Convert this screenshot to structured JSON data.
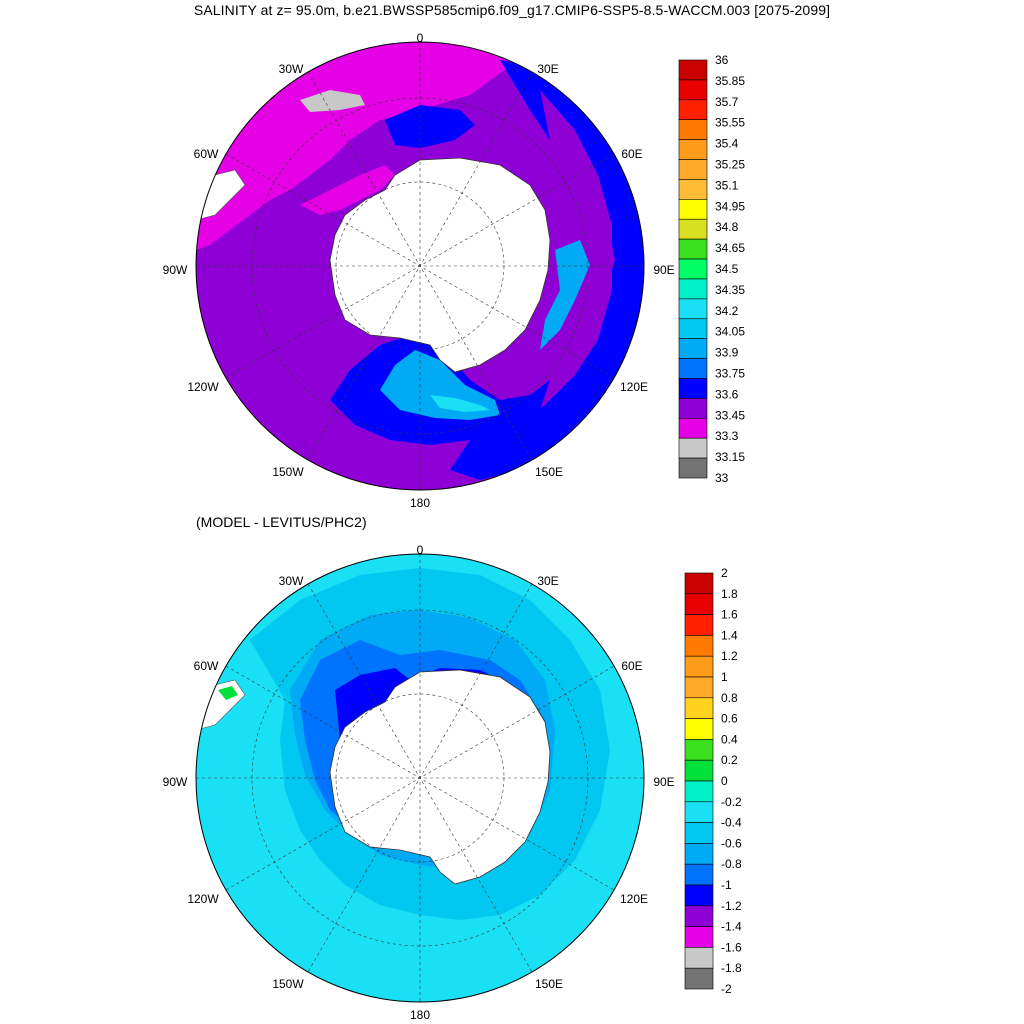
{
  "title": "SALINITY at z=  95.0m, b.e21.BWSSP585cmip6.f09_g17.CMIP6-SSP5-8.5-WACCM.003 [2075-2099]",
  "subtitle": "(MODEL - LEVITUS/PHC2)",
  "longitude_labels": {
    "top": "0",
    "ne": "30E",
    "e60": "60E",
    "e90": "90E",
    "e120": "120E",
    "se": "150E",
    "bottom": "180",
    "sw": "150W",
    "w120": "120W",
    "w90": "90W",
    "w60": "60W",
    "nw": "30W"
  },
  "colors": {
    "land": "#ffffff",
    "ocean_top": "#8e00d6",
    "ocean_bottom": "#19e0f5"
  },
  "colorbar_top": {
    "labels": [
      "36",
      "35.85",
      "35.7",
      "35.55",
      "35.4",
      "35.25",
      "35.1",
      "34.95",
      "34.8",
      "34.65",
      "34.5",
      "34.35",
      "34.2",
      "34.05",
      "33.9",
      "33.75",
      "33.6",
      "33.45",
      "33.3",
      "33.15",
      "33"
    ],
    "colors": [
      "#c80000",
      "#e80000",
      "#ff2000",
      "#ff7a00",
      "#ff9b1a",
      "#ffa928",
      "#ffbb33",
      "#ffff00",
      "#d9e020",
      "#3ae01e",
      "#00ff66",
      "#00f0c8",
      "#19e0f5",
      "#00c8f0",
      "#00aaf5",
      "#0073ff",
      "#0000ff",
      "#8e00d6",
      "#e600e6",
      "#c8c8c8",
      "#737373"
    ]
  },
  "colorbar_bottom": {
    "labels": [
      "2",
      "1.8",
      "1.6",
      "1.4",
      "1.2",
      "1",
      "0.8",
      "0.6",
      "0.4",
      "0.2",
      "0",
      "-0.2",
      "-0.4",
      "-0.6",
      "-0.8",
      "-1",
      "-1.2",
      "-1.4",
      "-1.6",
      "-1.8",
      "-2"
    ],
    "colors": [
      "#c80000",
      "#e80000",
      "#ff2000",
      "#ff7a00",
      "#ff9b1a",
      "#ffa928",
      "#ffd21e",
      "#ffff00",
      "#3ae01e",
      "#00e03a",
      "#00f0c8",
      "#19e0f5",
      "#00c8f0",
      "#00aaf5",
      "#0073ff",
      "#0000ff",
      "#8e00d6",
      "#e600e6",
      "#c8c8c8",
      "#737373"
    ]
  }
}
